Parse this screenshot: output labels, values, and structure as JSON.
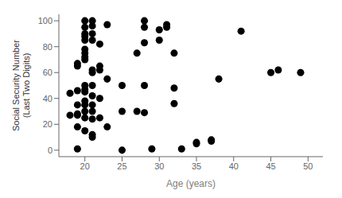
{
  "chart_data": {
    "type": "scatter",
    "xlabel": "Age (years)",
    "ylabel": "Social Security Number\n(Last Two Digits)",
    "x": [
      18,
      18,
      19,
      19,
      19,
      19,
      19,
      19,
      19,
      19,
      20,
      20,
      20,
      20,
      20,
      20,
      20,
      20,
      20,
      20,
      20,
      20,
      20,
      20,
      20,
      20,
      20,
      21,
      21,
      21,
      21,
      21,
      21,
      21,
      21,
      21,
      21,
      21,
      21,
      21,
      22,
      22,
      22,
      22,
      22,
      23,
      23,
      23,
      25,
      25,
      25,
      27,
      27,
      28,
      28,
      28,
      28,
      28,
      29,
      30,
      30,
      31,
      31,
      32,
      32,
      32,
      33,
      35,
      35,
      37,
      37,
      38,
      41,
      45,
      46,
      49
    ],
    "values": [
      44,
      27,
      1,
      18,
      65,
      67,
      46,
      35,
      28,
      27,
      100,
      95,
      90,
      88,
      85,
      78,
      75,
      72,
      70,
      50,
      47,
      45,
      38,
      35,
      30,
      25,
      15,
      100,
      96,
      90,
      85,
      62,
      60,
      50,
      42,
      35,
      30,
      24,
      12,
      10,
      82,
      65,
      62,
      40,
      25,
      97,
      55,
      18,
      0,
      30,
      50,
      75,
      30,
      95,
      100,
      83,
      50,
      29,
      1,
      93,
      85,
      97,
      95,
      75,
      48,
      36,
      1,
      5,
      6,
      7,
      8,
      55,
      92,
      60,
      62,
      60
    ],
    "color": "black",
    "xlim": [
      16.5,
      52
    ],
    "ylim": [
      -5,
      105
    ],
    "xticks": [
      20,
      25,
      30,
      35,
      40,
      45,
      50
    ],
    "yticks": [
      0,
      20,
      40,
      60,
      80,
      100
    ]
  }
}
